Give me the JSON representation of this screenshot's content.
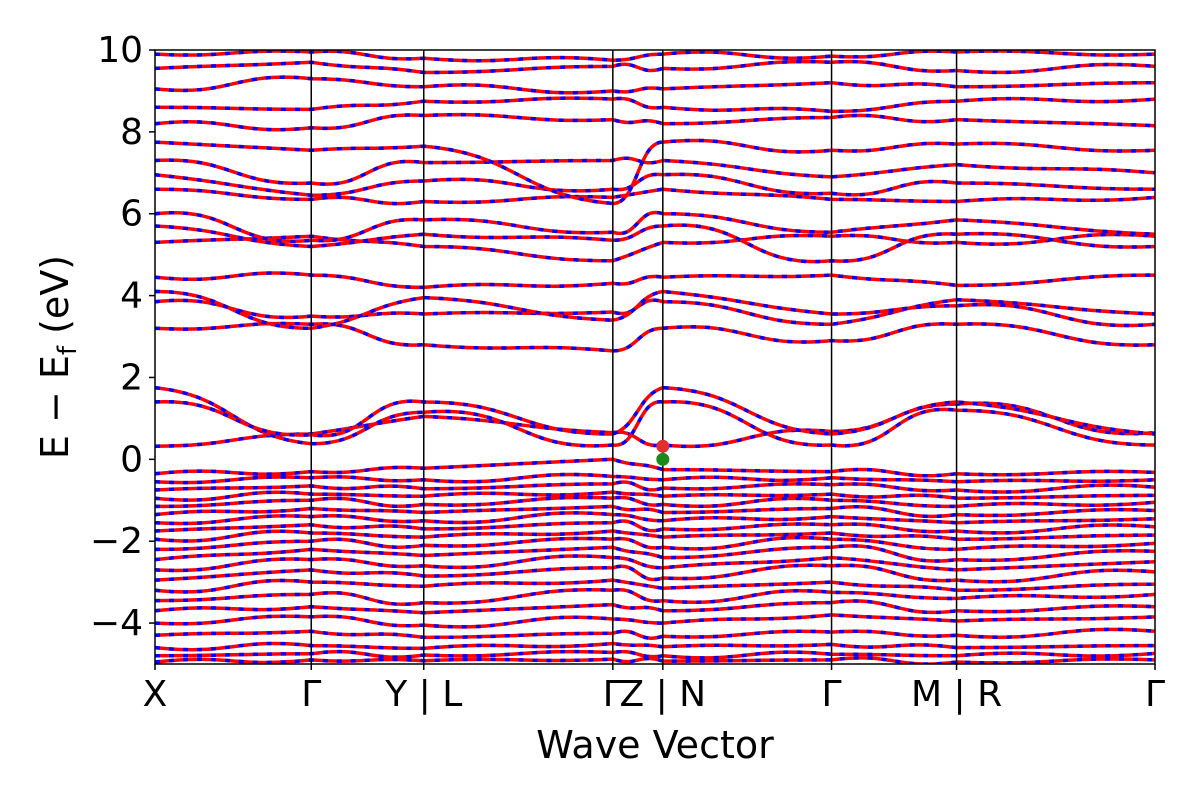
{
  "chart_data": {
    "type": "line",
    "title": "",
    "xlabel": "Wave Vector",
    "ylabel": "E − E_f (eV)",
    "ylabel_main": "E  −  E",
    "ylabel_sub": "f",
    "ylabel_unit": " (eV)",
    "ylim": [
      -5,
      10
    ],
    "yticks": [
      -4,
      -2,
      0,
      2,
      4,
      6,
      8,
      10
    ],
    "ytick_labels": [
      "−4",
      "−2",
      "0",
      "2",
      "4",
      "6",
      "8",
      "10"
    ],
    "xlim": [
      0,
      6.4
    ],
    "xticks": [
      {
        "x": 0.0,
        "label": "X"
      },
      {
        "x": 1.0,
        "label": "Γ"
      },
      {
        "x": 1.72,
        "label": "Y | L"
      },
      {
        "x": 2.93,
        "label": "Γ"
      },
      {
        "x": 3.25,
        "label": "Z | N"
      },
      {
        "x": 4.33,
        "label": "Γ"
      },
      {
        "x": 5.13,
        "label": "M | R"
      },
      {
        "x": 6.4,
        "label": "Γ"
      }
    ],
    "vlines": [
      1.0,
      1.72,
      2.93,
      3.25,
      4.33,
      5.13
    ],
    "grid": false,
    "legend": "none",
    "colors": {
      "spin_up": "#ff0000",
      "spin_down": "#0000ff",
      "cbm_marker": "#e03030",
      "vbm_marker": "#1a8a1a"
    },
    "band_style": "red solid lines overlaid with blue dashed lines (degenerate spin channels)",
    "markers": [
      {
        "name": "CBM",
        "x": 3.25,
        "y": 0.32,
        "color": "#e03030"
      },
      {
        "name": "VBM",
        "x": 3.25,
        "y": 0.0,
        "color": "#1a8a1a"
      }
    ],
    "bands": [
      [
        -4.95,
        -4.9,
        -4.92,
        -4.88,
        -4.93,
        -4.9,
        -4.95,
        -4.9
      ],
      [
        -4.8,
        -4.75,
        -4.78,
        -4.72,
        -4.8,
        -4.76,
        -4.8,
        -4.74
      ],
      [
        -4.6,
        -4.55,
        -4.62,
        -4.5,
        -4.58,
        -4.52,
        -4.6,
        -4.55
      ],
      [
        -4.3,
        -4.2,
        -4.35,
        -4.25,
        -4.32,
        -4.22,
        -4.3,
        -4.2
      ],
      [
        -4.0,
        -3.85,
        -4.05,
        -3.9,
        -4.0,
        -3.8,
        -3.95,
        -3.85
      ],
      [
        -3.7,
        -3.6,
        -3.75,
        -3.55,
        -3.7,
        -3.5,
        -3.7,
        -3.6
      ],
      [
        -3.45,
        -3.3,
        -3.5,
        -3.2,
        -3.45,
        -3.25,
        -3.4,
        -3.3
      ],
      [
        -3.2,
        -3.0,
        -3.1,
        -2.95,
        -3.15,
        -3.0,
        -3.2,
        -3.05
      ],
      [
        -2.95,
        -2.7,
        -2.85,
        -2.65,
        -2.9,
        -2.6,
        -2.95,
        -2.75
      ],
      [
        -2.7,
        -2.45,
        -2.6,
        -2.4,
        -2.65,
        -2.4,
        -2.7,
        -2.5
      ],
      [
        -2.45,
        -2.2,
        -2.35,
        -2.15,
        -2.4,
        -2.15,
        -2.45,
        -2.25
      ],
      [
        -2.2,
        -2.0,
        -2.1,
        -1.95,
        -2.15,
        -1.95,
        -2.2,
        -2.05
      ],
      [
        -1.95,
        -1.8,
        -1.9,
        -1.75,
        -1.9,
        -1.8,
        -1.95,
        -1.85
      ],
      [
        -1.75,
        -1.6,
        -1.7,
        -1.55,
        -1.7,
        -1.6,
        -1.75,
        -1.65
      ],
      [
        -1.55,
        -1.4,
        -1.5,
        -1.35,
        -1.5,
        -1.4,
        -1.55,
        -1.45
      ],
      [
        -1.35,
        -1.2,
        -1.3,
        -1.15,
        -1.3,
        -1.2,
        -1.35,
        -1.25
      ],
      [
        -1.15,
        -1.0,
        -1.1,
        -0.95,
        -1.1,
        -1.0,
        -1.15,
        -1.05
      ],
      [
        -0.95,
        -0.85,
        -0.9,
        -0.8,
        -0.9,
        -0.85,
        -0.95,
        -0.88
      ],
      [
        -0.75,
        -0.65,
        -0.72,
        -0.6,
        -0.7,
        -0.62,
        -0.75,
        -0.68
      ],
      [
        -0.55,
        -0.45,
        -0.5,
        -0.42,
        -0.5,
        -0.45,
        -0.55,
        -0.5
      ],
      [
        -0.35,
        -0.3,
        -0.22,
        0.0,
        -0.25,
        -0.3,
        -0.35,
        -0.32
      ],
      [
        0.32,
        0.62,
        1.05,
        0.65,
        0.35,
        0.68,
        1.35,
        0.65
      ],
      [
        1.75,
        0.38,
        1.15,
        0.35,
        1.4,
        0.35,
        1.2,
        0.35
      ],
      [
        1.4,
        0.6,
        1.4,
        0.62,
        1.75,
        0.62,
        1.4,
        0.62
      ],
      [
        3.2,
        3.3,
        2.8,
        2.65,
        3.2,
        2.9,
        3.3,
        2.8
      ],
      [
        3.85,
        3.5,
        3.55,
        3.6,
        3.85,
        3.3,
        3.9,
        3.55
      ],
      [
        4.1,
        3.2,
        3.95,
        3.4,
        4.1,
        3.55,
        3.75,
        3.3
      ],
      [
        4.45,
        4.5,
        4.2,
        4.3,
        4.45,
        4.5,
        4.25,
        4.5
      ],
      [
        5.3,
        5.45,
        5.2,
        4.85,
        5.3,
        5.45,
        5.3,
        5.45
      ],
      [
        5.7,
        5.2,
        5.5,
        5.35,
        5.7,
        4.85,
        5.5,
        5.2
      ],
      [
        6.0,
        5.35,
        5.85,
        5.55,
        6.0,
        5.55,
        5.85,
        5.5
      ],
      [
        6.6,
        6.35,
        6.3,
        6.4,
        6.6,
        6.35,
        6.3,
        6.4
      ],
      [
        6.95,
        6.45,
        6.8,
        6.6,
        6.95,
        6.5,
        6.75,
        6.6
      ],
      [
        7.3,
        6.75,
        7.25,
        7.3,
        7.3,
        6.9,
        7.2,
        7.0
      ],
      [
        7.75,
        7.55,
        7.65,
        6.25,
        7.75,
        7.55,
        7.7,
        7.55
      ],
      [
        8.2,
        8.1,
        8.4,
        8.3,
        8.2,
        8.35,
        8.3,
        8.15
      ],
      [
        8.6,
        8.55,
        8.75,
        8.8,
        8.6,
        8.5,
        8.75,
        8.8
      ],
      [
        9.05,
        9.3,
        9.1,
        9.0,
        9.05,
        9.2,
        9.1,
        9.2
      ],
      [
        9.55,
        9.7,
        9.45,
        9.6,
        9.55,
        9.7,
        9.5,
        9.6
      ],
      [
        9.9,
        9.95,
        9.8,
        9.75,
        9.9,
        9.85,
        9.95,
        9.9
      ]
    ]
  }
}
